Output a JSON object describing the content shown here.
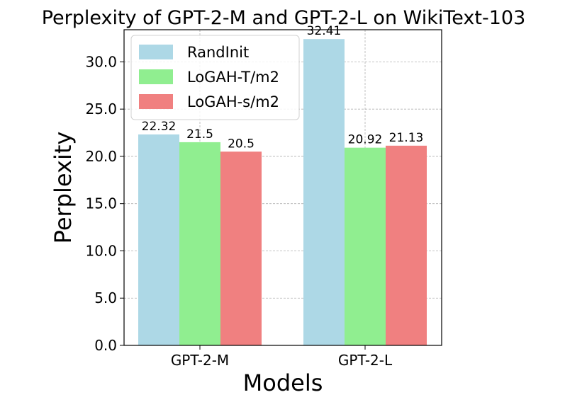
{
  "chart_data": {
    "type": "bar",
    "title": "Perplexity of GPT-2-M and GPT-2-L on WikiText-103",
    "xlabel": "Models",
    "ylabel": "Perplexity",
    "categories": [
      "GPT-2-M",
      "GPT-2-L"
    ],
    "series": [
      {
        "name": "RandInit",
        "color": "#add8e6",
        "values": [
          22.32,
          32.41
        ],
        "labels": [
          "22.32",
          "32.41"
        ]
      },
      {
        "name": "LoGAH-T/m2",
        "color": "#90ee90",
        "values": [
          21.5,
          20.92
        ],
        "labels": [
          "21.5",
          "20.92"
        ]
      },
      {
        "name": "LoGAH-s/m2",
        "color": "#f08080",
        "values": [
          20.5,
          21.13
        ],
        "labels": [
          "20.5",
          "21.13"
        ]
      }
    ],
    "ylim": [
      0,
      33.4
    ],
    "yticks": [
      0.0,
      5.0,
      10.0,
      15.0,
      20.0,
      25.0,
      30.0
    ],
    "ytick_labels": [
      "0.0",
      "5.0",
      "10.0",
      "15.0",
      "20.0",
      "25.0",
      "30.0"
    ],
    "grid": true,
    "legend_position": "top-left"
  }
}
